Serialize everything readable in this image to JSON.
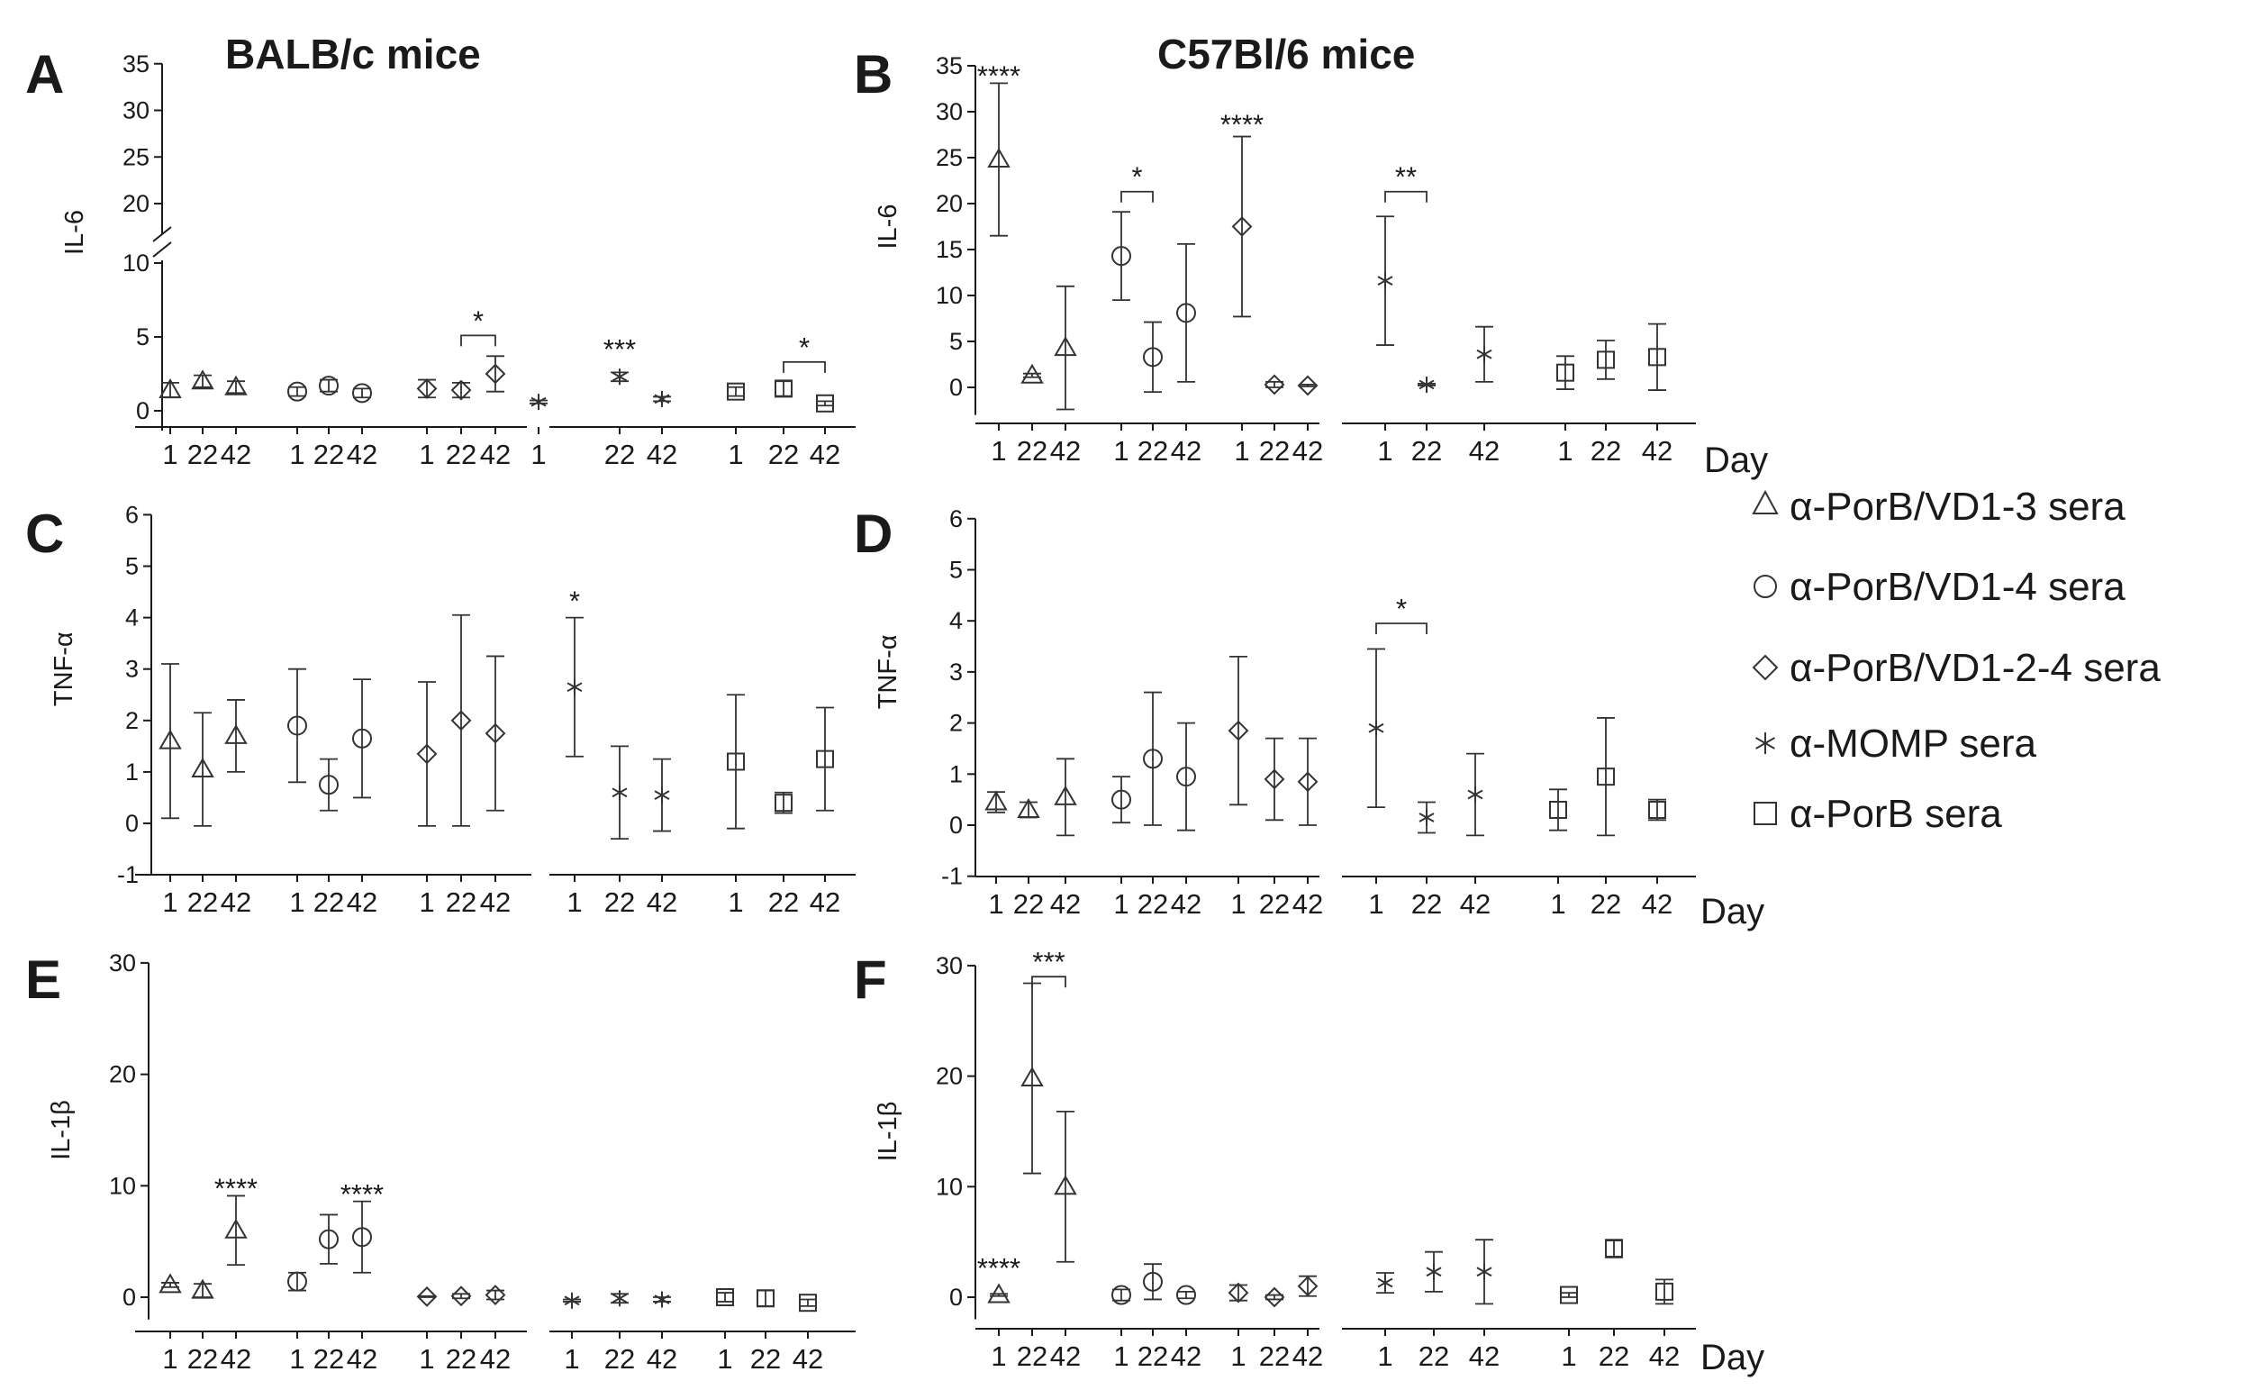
{
  "headers": {
    "left": "BALB/c mice",
    "right": "C57Bl/6 mice"
  },
  "day_label": "Day",
  "legend": [
    {
      "marker": "triangle",
      "label": "α-PorB/VD1-3 sera"
    },
    {
      "marker": "circle",
      "label": "α-PorB/VD1-4 sera"
    },
    {
      "marker": "diamond",
      "label": "α-PorB/VD1-2-4 sera"
    },
    {
      "marker": "star",
      "label": "α-MOMP sera"
    },
    {
      "marker": "square",
      "label": "α-PorB sera"
    }
  ],
  "chart_data": [
    {
      "panel": "A",
      "type": "scatter",
      "ylabel": "IL-6",
      "ylim": [
        0,
        35
      ],
      "y_break": [
        10,
        20
      ],
      "yticks": [
        0,
        5,
        10,
        20,
        25,
        30,
        35
      ],
      "series": [
        {
          "marker": "triangle",
          "x": [
            "1",
            "22",
            "42"
          ],
          "y": [
            1.4,
            2.0,
            1.6
          ],
          "err": [
            0.5,
            0.4,
            0.4
          ]
        },
        {
          "marker": "circle",
          "x": [
            "1",
            "22",
            "42"
          ],
          "y": [
            1.3,
            1.7,
            1.2
          ],
          "err": [
            0.3,
            0.4,
            0.3
          ]
        },
        {
          "marker": "diamond",
          "x": [
            "1",
            "22",
            "42"
          ],
          "y": [
            1.5,
            1.4,
            2.5
          ],
          "err": [
            0.6,
            0.5,
            1.2
          ]
        },
        {
          "marker": "star",
          "x": [
            "1",
            "22",
            "42"
          ],
          "y": [
            0.6,
            2.3,
            0.8
          ],
          "err": [
            0.1,
            0.3,
            0.15
          ]
        },
        {
          "marker": "square",
          "x": [
            "1",
            "22",
            "42"
          ],
          "y": [
            1.3,
            1.5,
            0.5
          ],
          "err": [
            0.3,
            0.5,
            0.15
          ]
        }
      ],
      "annotations": [
        {
          "text": "*",
          "series": 2,
          "from": 1,
          "to": 2,
          "y": 5.1
        },
        {
          "text": "***",
          "series": 3,
          "at": 1,
          "y": 3.9
        },
        {
          "text": "*",
          "series": 4,
          "from": 1,
          "to": 2,
          "y": 3.3
        }
      ]
    },
    {
      "panel": "B",
      "type": "scatter",
      "ylabel": "IL-6",
      "ylim": [
        -3,
        35
      ],
      "yticks": [
        0,
        5,
        10,
        15,
        20,
        25,
        30,
        35
      ],
      "series": [
        {
          "marker": "triangle",
          "x": [
            "1",
            "22",
            "42"
          ],
          "y": [
            24.8,
            1.3,
            4.3
          ],
          "err": [
            8.3,
            0.2,
            6.7
          ]
        },
        {
          "marker": "circle",
          "x": [
            "1",
            "22",
            "42"
          ],
          "y": [
            14.3,
            3.3,
            8.1
          ],
          "err": [
            4.8,
            3.8,
            7.5
          ]
        },
        {
          "marker": "diamond",
          "x": [
            "1",
            "22",
            "42"
          ],
          "y": [
            17.5,
            0.3,
            0.2
          ],
          "err": [
            9.8,
            0.3,
            0.1
          ]
        },
        {
          "marker": "star",
          "x": [
            "1",
            "22",
            "42"
          ],
          "y": [
            11.6,
            0.3,
            3.6
          ],
          "err": [
            7.0,
            0.1,
            3.0
          ]
        },
        {
          "marker": "square",
          "x": [
            "1",
            "22",
            "42"
          ],
          "y": [
            1.6,
            3.0,
            3.3
          ],
          "err": [
            1.8,
            2.1,
            3.6
          ]
        }
      ],
      "annotations": [
        {
          "text": "****",
          "series": 0,
          "at": 0,
          "y": 33.5
        },
        {
          "text": "*",
          "series": 1,
          "from": 0,
          "to": 1,
          "y": 21.3
        },
        {
          "text": "****",
          "series": 2,
          "at": 0,
          "y": 28.2
        },
        {
          "text": "**",
          "series": 3,
          "from": 0,
          "to": 1,
          "y": 21.3
        }
      ]
    },
    {
      "panel": "C",
      "type": "scatter",
      "ylabel": "TNF-α",
      "ylim": [
        -1,
        6
      ],
      "yticks": [
        -1,
        0,
        1,
        2,
        3,
        4,
        5,
        6
      ],
      "series": [
        {
          "marker": "triangle",
          "x": [
            "1",
            "22",
            "42"
          ],
          "y": [
            1.6,
            1.05,
            1.7
          ],
          "err": [
            1.5,
            1.1,
            0.7
          ]
        },
        {
          "marker": "circle",
          "x": [
            "1",
            "22",
            "42"
          ],
          "y": [
            1.9,
            0.75,
            1.65
          ],
          "err": [
            1.1,
            0.5,
            1.15
          ]
        },
        {
          "marker": "diamond",
          "x": [
            "1",
            "22",
            "42"
          ],
          "y": [
            1.35,
            2.0,
            1.75
          ],
          "err": [
            1.4,
            2.05,
            1.5
          ]
        },
        {
          "marker": "star",
          "x": [
            "1",
            "22",
            "42"
          ],
          "y": [
            2.65,
            0.6,
            0.55
          ],
          "err": [
            1.35,
            0.9,
            0.7
          ]
        },
        {
          "marker": "square",
          "x": [
            "1",
            "22",
            "42"
          ],
          "y": [
            1.2,
            0.4,
            1.25
          ],
          "err": [
            1.3,
            0.2,
            1.0
          ]
        }
      ],
      "annotations": [
        {
          "text": "*",
          "series": 3,
          "at": 0,
          "y": 4.25
        }
      ]
    },
    {
      "panel": "D",
      "type": "scatter",
      "ylabel": "TNF-α",
      "ylim": [
        -1,
        6
      ],
      "yticks": [
        -1,
        0,
        1,
        2,
        3,
        4,
        5,
        6
      ],
      "series": [
        {
          "marker": "triangle",
          "x": [
            "1",
            "22",
            "42"
          ],
          "y": [
            0.45,
            0.3,
            0.55
          ],
          "err": [
            0.2,
            0.15,
            0.75
          ]
        },
        {
          "marker": "circle",
          "x": [
            "1",
            "22",
            "42"
          ],
          "y": [
            0.5,
            1.3,
            0.95
          ],
          "err": [
            0.45,
            1.3,
            1.05
          ]
        },
        {
          "marker": "diamond",
          "x": [
            "1",
            "22",
            "42"
          ],
          "y": [
            1.85,
            0.9,
            0.85
          ],
          "err": [
            1.45,
            0.8,
            0.85
          ]
        },
        {
          "marker": "star",
          "x": [
            "1",
            "22",
            "42"
          ],
          "y": [
            1.9,
            0.15,
            0.6
          ],
          "err": [
            1.55,
            0.3,
            0.8
          ]
        },
        {
          "marker": "square",
          "x": [
            "1",
            "22",
            "42"
          ],
          "y": [
            0.3,
            0.95,
            0.3
          ],
          "err": [
            0.4,
            1.15,
            0.2
          ]
        }
      ],
      "annotations": [
        {
          "text": "*",
          "series": 3,
          "from": 0,
          "to": 1,
          "y": 3.95
        }
      ]
    },
    {
      "panel": "E",
      "type": "scatter",
      "ylabel": "IL-1β",
      "ylim": [
        -2,
        30
      ],
      "yticks": [
        0,
        10,
        20,
        30
      ],
      "series": [
        {
          "marker": "triangle",
          "x": [
            "1",
            "22",
            "42"
          ],
          "y": [
            1.1,
            0.6,
            6.0
          ],
          "err": [
            0.2,
            0.6,
            3.1
          ]
        },
        {
          "marker": "circle",
          "x": [
            "1",
            "22",
            "42"
          ],
          "y": [
            1.4,
            5.2,
            5.4
          ],
          "err": [
            0.8,
            2.2,
            3.2
          ]
        },
        {
          "marker": "diamond",
          "x": [
            "1",
            "22",
            "42"
          ],
          "y": [
            0.05,
            0.1,
            0.2
          ],
          "err": [
            0.05,
            0.2,
            0.4
          ]
        },
        {
          "marker": "star",
          "x": [
            "1",
            "22",
            "42"
          ],
          "y": [
            -0.3,
            -0.1,
            -0.2
          ],
          "err": [
            0.1,
            0.4,
            0.2
          ]
        },
        {
          "marker": "square",
          "x": [
            "1",
            "22",
            "42"
          ],
          "y": [
            0.0,
            -0.1,
            -0.5
          ],
          "err": [
            0.4,
            0.7,
            0.3
          ]
        }
      ],
      "annotations": [
        {
          "text": "****",
          "series": 0,
          "at": 2,
          "y": 9.4
        },
        {
          "text": "****",
          "series": 1,
          "at": 2,
          "y": 8.9
        }
      ]
    },
    {
      "panel": "F",
      "type": "scatter",
      "ylabel": "IL-1β",
      "ylim": [
        -2,
        30
      ],
      "yticks": [
        0,
        10,
        20,
        30
      ],
      "series": [
        {
          "marker": "triangle",
          "x": [
            "1",
            "22",
            "42"
          ],
          "y": [
            0.2,
            19.8,
            10.0
          ],
          "err": [
            0.1,
            8.6,
            6.8
          ]
        },
        {
          "marker": "circle",
          "x": [
            "1",
            "22",
            "42"
          ],
          "y": [
            0.2,
            1.4,
            0.2
          ],
          "err": [
            0.5,
            1.6,
            0.3
          ]
        },
        {
          "marker": "diamond",
          "x": [
            "1",
            "22",
            "42"
          ],
          "y": [
            0.4,
            0.0,
            1.0
          ],
          "err": [
            0.7,
            0.2,
            0.9
          ]
        },
        {
          "marker": "star",
          "x": [
            "1",
            "22",
            "42"
          ],
          "y": [
            1.3,
            2.3,
            2.3
          ],
          "err": [
            0.9,
            1.8,
            2.9
          ]
        },
        {
          "marker": "square",
          "x": [
            "1",
            "22",
            "42"
          ],
          "y": [
            0.2,
            4.4,
            0.5
          ],
          "err": [
            0.2,
            0.8,
            1.1
          ]
        }
      ],
      "annotations": [
        {
          "text": "****",
          "series": 0,
          "at": 0,
          "y": 2.3
        },
        {
          "text": "***",
          "series": 0,
          "from": 1,
          "to": 2,
          "y": 29.0
        }
      ]
    }
  ]
}
